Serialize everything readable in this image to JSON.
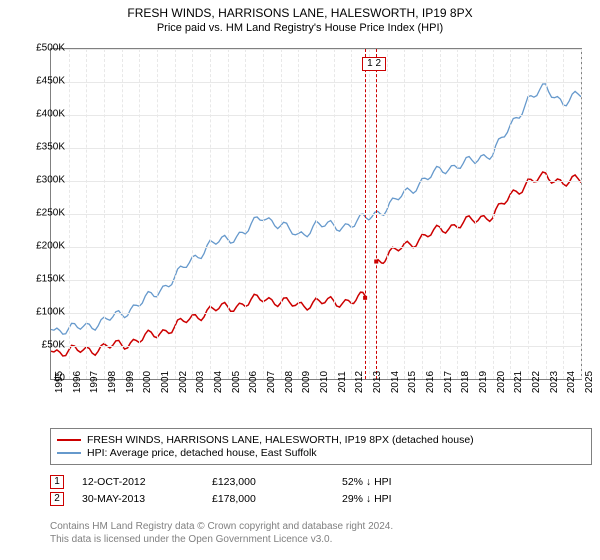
{
  "title": "FRESH WINDS, HARRISONS LANE, HALESWORTH, IP19 8PX",
  "subtitle": "Price paid vs. HM Land Registry's House Price Index (HPI)",
  "chart": {
    "type": "line",
    "background_color": "#ffffff",
    "grid_color": "#e8e8e8",
    "border_color": "#808080",
    "xlim": [
      1995,
      2025
    ],
    "ylim": [
      0,
      500000
    ],
    "ytick_step": 50000,
    "y_ticks": [
      "£0",
      "£50K",
      "£100K",
      "£150K",
      "£200K",
      "£250K",
      "£300K",
      "£350K",
      "£400K",
      "£450K",
      "£500K"
    ],
    "x_ticks": [
      "1995",
      "1996",
      "1997",
      "1998",
      "1999",
      "2000",
      "2001",
      "2002",
      "2003",
      "2004",
      "2005",
      "2006",
      "2007",
      "2008",
      "2009",
      "2010",
      "2011",
      "2012",
      "2013",
      "2014",
      "2015",
      "2016",
      "2017",
      "2018",
      "2019",
      "2020",
      "2021",
      "2022",
      "2023",
      "2024",
      "2025"
    ],
    "series": [
      {
        "name": "FRESH WINDS, HARRISONS LANE, HALESWORTH, IP19 8PX (detached house)",
        "color": "#cc0000",
        "width": 1.5,
        "data": [
          [
            1995,
            42000
          ],
          [
            1996,
            42000
          ],
          [
            1997,
            44000
          ],
          [
            1998,
            48000
          ],
          [
            1999,
            52000
          ],
          [
            2000,
            60000
          ],
          [
            2001,
            68000
          ],
          [
            2002,
            80000
          ],
          [
            2003,
            92000
          ],
          [
            2004,
            105000
          ],
          [
            2005,
            108000
          ],
          [
            2006,
            115000
          ],
          [
            2007,
            122000
          ],
          [
            2008,
            118000
          ],
          [
            2009,
            110000
          ],
          [
            2010,
            118000
          ],
          [
            2011,
            115000
          ],
          [
            2012,
            120000
          ],
          [
            2012.78,
            123000
          ],
          [
            2013.41,
            178000
          ],
          [
            2014,
            188000
          ],
          [
            2015,
            200000
          ],
          [
            2016,
            215000
          ],
          [
            2017,
            225000
          ],
          [
            2018,
            235000
          ],
          [
            2019,
            240000
          ],
          [
            2020,
            250000
          ],
          [
            2021,
            275000
          ],
          [
            2022,
            300000
          ],
          [
            2023,
            305000
          ],
          [
            2024,
            300000
          ],
          [
            2025,
            300000
          ]
        ],
        "jump_at": 2013.0
      },
      {
        "name": "HPI: Average price, detached house, East Suffolk",
        "color": "#6699cc",
        "width": 1.3,
        "data": [
          [
            1995,
            75000
          ],
          [
            1996,
            75000
          ],
          [
            1997,
            80000
          ],
          [
            1998,
            88000
          ],
          [
            1999,
            98000
          ],
          [
            2000,
            115000
          ],
          [
            2001,
            130000
          ],
          [
            2002,
            155000
          ],
          [
            2003,
            180000
          ],
          [
            2004,
            205000
          ],
          [
            2005,
            210000
          ],
          [
            2006,
            225000
          ],
          [
            2007,
            245000
          ],
          [
            2008,
            235000
          ],
          [
            2009,
            215000
          ],
          [
            2010,
            235000
          ],
          [
            2011,
            230000
          ],
          [
            2012,
            235000
          ],
          [
            2013,
            245000
          ],
          [
            2014,
            260000
          ],
          [
            2015,
            280000
          ],
          [
            2016,
            300000
          ],
          [
            2017,
            315000
          ],
          [
            2018,
            325000
          ],
          [
            2019,
            330000
          ],
          [
            2020,
            345000
          ],
          [
            2021,
            380000
          ],
          [
            2022,
            425000
          ],
          [
            2023,
            440000
          ],
          [
            2024,
            420000
          ],
          [
            2025,
            430000
          ]
        ]
      }
    ],
    "markers": [
      {
        "num": "1",
        "date": "12-OCT-2012",
        "price": "£123,000",
        "pct": "52% ↓ HPI",
        "x": 2012.78
      },
      {
        "num": "2",
        "date": "30-MAY-2013",
        "price": "£178,000",
        "pct": "29% ↓ HPI",
        "x": 2013.41
      }
    ],
    "marker_box_label": "1 2"
  },
  "legend": {
    "item1": "FRESH WINDS, HARRISONS LANE, HALESWORTH, IP19 8PX (detached house)",
    "item2": "HPI: Average price, detached house, East Suffolk"
  },
  "footer": {
    "line1": "Contains HM Land Registry data © Crown copyright and database right 2024.",
    "line2": "This data is licensed under the Open Government Licence v3.0."
  }
}
